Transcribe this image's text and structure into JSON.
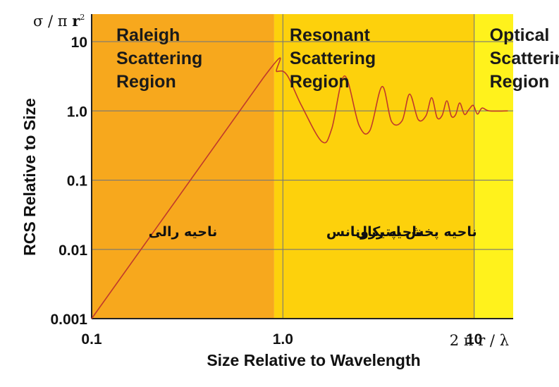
{
  "chart_data": {
    "type": "line",
    "title": "",
    "xlabel": "Size Relative to Wavelength",
    "ylabel": "RCS Relative to Size",
    "x_unit": {
      "base": "2 π r / ",
      "tail": "λ"
    },
    "y_unit": {
      "base": "σ / π ",
      "r": "r",
      "sup": "2"
    },
    "x_scale": "log",
    "y_scale": "log",
    "xlim": [
      0.1,
      16
    ],
    "ylim": [
      0.001,
      25
    ],
    "x_ticks": [
      {
        "value": 0.1,
        "label": "0.1"
      },
      {
        "value": 1,
        "label": "1.0"
      },
      {
        "value": 10,
        "label": "10"
      }
    ],
    "y_ticks": [
      {
        "value": 0.001,
        "label": "0.001"
      },
      {
        "value": 0.01,
        "label": "0.01"
      },
      {
        "value": 0.1,
        "label": "0.1"
      },
      {
        "value": 1,
        "label": "1.0"
      },
      {
        "value": 10,
        "label": "10"
      }
    ],
    "grid": true,
    "regions": [
      {
        "name": "raleigh",
        "x_from": 0.1,
        "x_to": 0.9,
        "color": "#f7a81d",
        "lines": [
          "Raleigh",
          "Scattering",
          "Region"
        ],
        "fa_label": "ناحیه رالی"
      },
      {
        "name": "resonant",
        "x_from": 0.9,
        "x_to": 10,
        "color": "#fdd10c",
        "lines": [
          "Resonant",
          "Scattering",
          "Region"
        ],
        "fa_label": "ناحیه رزونانس"
      },
      {
        "name": "optical",
        "x_from": 10,
        "x_to": 16,
        "color": "#fff21c",
        "lines": [
          "Optical",
          "Scattering",
          "Region"
        ],
        "fa_label": "ناحیه پخش اپتیکال"
      }
    ],
    "series": [
      {
        "color": "#c0392b",
        "points": [
          [
            0.1,
            0.001
          ],
          [
            0.79,
            3.0
          ],
          [
            0.93,
            3.7
          ],
          [
            1.05,
            3.3
          ],
          [
            1.25,
            1.2
          ],
          [
            1.6,
            0.36
          ],
          [
            1.8,
            0.55
          ],
          [
            2.1,
            3.2
          ],
          [
            2.5,
            0.62
          ],
          [
            2.85,
            0.52
          ],
          [
            3.3,
            2.25
          ],
          [
            3.7,
            0.7
          ],
          [
            4.2,
            0.72
          ],
          [
            4.6,
            1.75
          ],
          [
            5.1,
            0.75
          ],
          [
            5.6,
            0.85
          ],
          [
            6.0,
            1.55
          ],
          [
            6.4,
            0.8
          ],
          [
            6.8,
            0.86
          ],
          [
            7.2,
            1.4
          ],
          [
            7.6,
            0.84
          ],
          [
            8.0,
            0.88
          ],
          [
            8.4,
            1.3
          ],
          [
            8.9,
            0.89
          ],
          [
            9.4,
            1.05
          ],
          [
            9.9,
            1.2
          ],
          [
            10.4,
            0.9
          ],
          [
            11.0,
            1.1
          ],
          [
            12.0,
            1.0
          ],
          [
            15.0,
            1.0
          ]
        ]
      }
    ]
  }
}
